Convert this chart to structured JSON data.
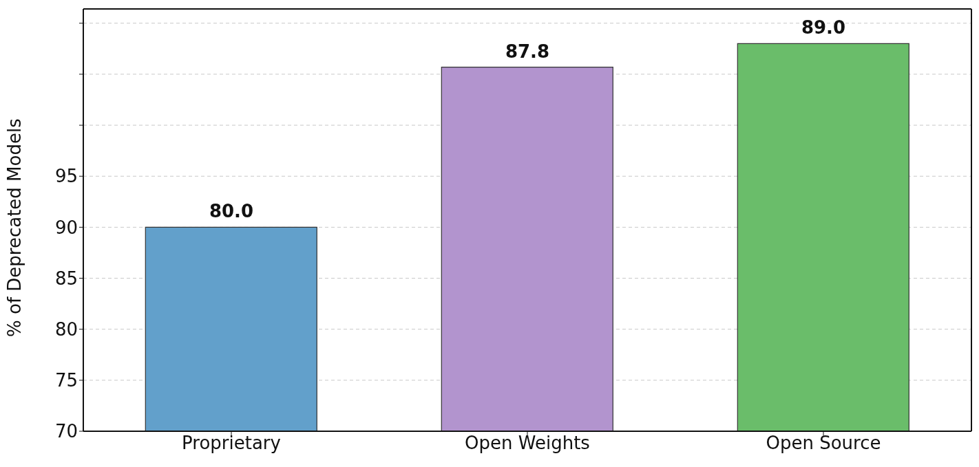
{
  "chart_data": {
    "type": "bar",
    "ylabel": "% of Deprecated Models",
    "categories": [
      "Proprietary",
      "Open Weights",
      "Open Source"
    ],
    "values": [
      90,
      105.7,
      108
    ],
    "colors": [
      "#62a0cb",
      "#b294ce",
      "#6abd6a"
    ],
    "annotations": [
      {
        "text": "80.0",
        "x": "Proprietary",
        "y": 90
      },
      {
        "text": "87.8",
        "x": "Open Weights",
        "y": 105.7
      },
      {
        "text": "89.0",
        "x": "Open Source",
        "y": 108
      }
    ],
    "ylim": [
      70,
      111.4
    ],
    "yticks": [
      70,
      75,
      80,
      85,
      90,
      95,
      {
        "value": 100,
        "label": null
      },
      {
        "value": 105,
        "label": null
      },
      {
        "value": 110,
        "label": null
      }
    ],
    "grid": "y"
  }
}
